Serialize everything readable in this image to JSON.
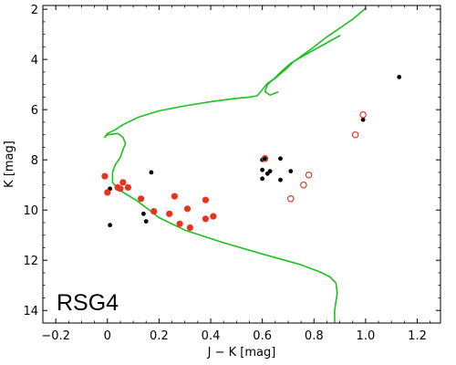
{
  "chart_data": {
    "type": "scatter",
    "title": "",
    "xlabel": "J − K [mag]",
    "ylabel": "K [mag]",
    "xlim": [
      -0.25,
      1.29
    ],
    "ylim": [
      14.5,
      1.85
    ],
    "y_inverted": true,
    "grid": false,
    "x_ticks": [
      -0.2,
      0.0,
      0.2,
      0.4,
      0.6,
      0.8,
      1.0,
      1.2
    ],
    "x_tick_labels": [
      "−0.2",
      "0",
      "0.2",
      "0.4",
      "0.6",
      "0.8",
      "1.0",
      "1.2"
    ],
    "y_ticks": [
      2,
      4,
      6,
      8,
      10,
      12,
      14
    ],
    "y_tick_labels": [
      "2",
      "4",
      "6",
      "8",
      "10",
      "12",
      "14"
    ],
    "annotation": "RSG4",
    "colors": {
      "isochrone": "#1fbf1f",
      "black_points": "#000000",
      "red_filled": "#e8341c",
      "red_open": "#e02a1a"
    },
    "series": [
      {
        "kind": "line",
        "color": "#1fbf1f",
        "points": [
          [
            0.88,
            14.5
          ],
          [
            0.88,
            14.0
          ],
          [
            0.89,
            13.3
          ],
          [
            0.885,
            12.9
          ],
          [
            0.86,
            12.65
          ],
          [
            0.82,
            12.45
          ],
          [
            0.75,
            12.18
          ],
          [
            0.6,
            11.75
          ],
          [
            0.45,
            11.3
          ],
          [
            0.3,
            10.8
          ],
          [
            0.2,
            10.3
          ],
          [
            0.15,
            9.9
          ],
          [
            0.11,
            9.6
          ],
          [
            0.07,
            9.35
          ],
          [
            0.04,
            9.15
          ],
          [
            0.02,
            8.9
          ],
          [
            0.02,
            8.5
          ],
          [
            0.03,
            8.2
          ],
          [
            0.05,
            7.9
          ],
          [
            0.06,
            7.6
          ],
          [
            0.07,
            7.35
          ],
          [
            0.06,
            7.1
          ],
          [
            0.04,
            6.95
          ],
          [
            0.0,
            7.0
          ],
          [
            -0.01,
            7.1
          ],
          [
            0.0,
            6.95
          ],
          [
            0.03,
            6.8
          ],
          [
            0.06,
            6.6
          ],
          [
            0.12,
            6.3
          ],
          [
            0.2,
            6.05
          ],
          [
            0.3,
            5.85
          ],
          [
            0.4,
            5.68
          ],
          [
            0.5,
            5.55
          ],
          [
            0.55,
            5.5
          ],
          [
            0.58,
            5.45
          ],
          [
            0.6,
            5.2
          ],
          [
            0.62,
            4.95
          ],
          [
            0.65,
            4.75
          ],
          [
            0.69,
            4.4
          ],
          [
            0.72,
            4.1
          ],
          [
            0.76,
            3.8
          ],
          [
            0.8,
            3.5
          ],
          [
            0.85,
            3.1
          ],
          [
            0.9,
            2.75
          ],
          [
            0.95,
            2.4
          ],
          [
            0.99,
            2.05
          ],
          [
            1.0,
            1.95
          ]
        ]
      },
      {
        "kind": "line",
        "color": "#1fbf1f",
        "points": [
          [
            0.9,
            3.05
          ],
          [
            0.83,
            3.45
          ],
          [
            0.76,
            3.85
          ],
          [
            0.71,
            4.15
          ],
          [
            0.68,
            4.42
          ],
          [
            0.65,
            4.72
          ],
          [
            0.62,
            5.0
          ],
          [
            0.61,
            5.28
          ],
          [
            0.63,
            5.42
          ],
          [
            0.66,
            5.3
          ]
        ]
      },
      {
        "kind": "points",
        "style": "black",
        "points": [
          [
            1.13,
            4.7
          ],
          [
            0.99,
            6.4
          ],
          [
            0.6,
            8.0
          ],
          [
            0.61,
            7.95
          ],
          [
            0.67,
            7.95
          ],
          [
            0.6,
            8.4
          ],
          [
            0.62,
            8.55
          ],
          [
            0.63,
            8.45
          ],
          [
            0.67,
            8.8
          ],
          [
            0.6,
            8.75
          ],
          [
            0.71,
            8.45
          ],
          [
            0.17,
            8.5
          ],
          [
            0.01,
            9.15
          ],
          [
            0.14,
            10.15
          ],
          [
            0.15,
            10.45
          ],
          [
            0.01,
            10.6
          ]
        ]
      },
      {
        "kind": "points",
        "style": "red-filled",
        "points": [
          [
            -0.01,
            8.65
          ],
          [
            0.0,
            9.3
          ],
          [
            0.06,
            8.9
          ],
          [
            0.04,
            9.1
          ],
          [
            0.05,
            9.15
          ],
          [
            0.08,
            9.1
          ],
          [
            0.13,
            9.55
          ],
          [
            0.18,
            10.05
          ],
          [
            0.26,
            9.45
          ],
          [
            0.24,
            10.15
          ],
          [
            0.31,
            9.95
          ],
          [
            0.28,
            10.55
          ],
          [
            0.32,
            10.7
          ],
          [
            0.38,
            9.6
          ],
          [
            0.38,
            10.35
          ],
          [
            0.41,
            10.25
          ]
        ]
      },
      {
        "kind": "points",
        "style": "red-open",
        "points": [
          [
            0.99,
            6.2
          ],
          [
            0.96,
            7.0
          ],
          [
            0.61,
            7.95
          ],
          [
            0.78,
            8.6
          ],
          [
            0.76,
            9.0
          ],
          [
            0.71,
            9.55
          ]
        ]
      }
    ]
  }
}
